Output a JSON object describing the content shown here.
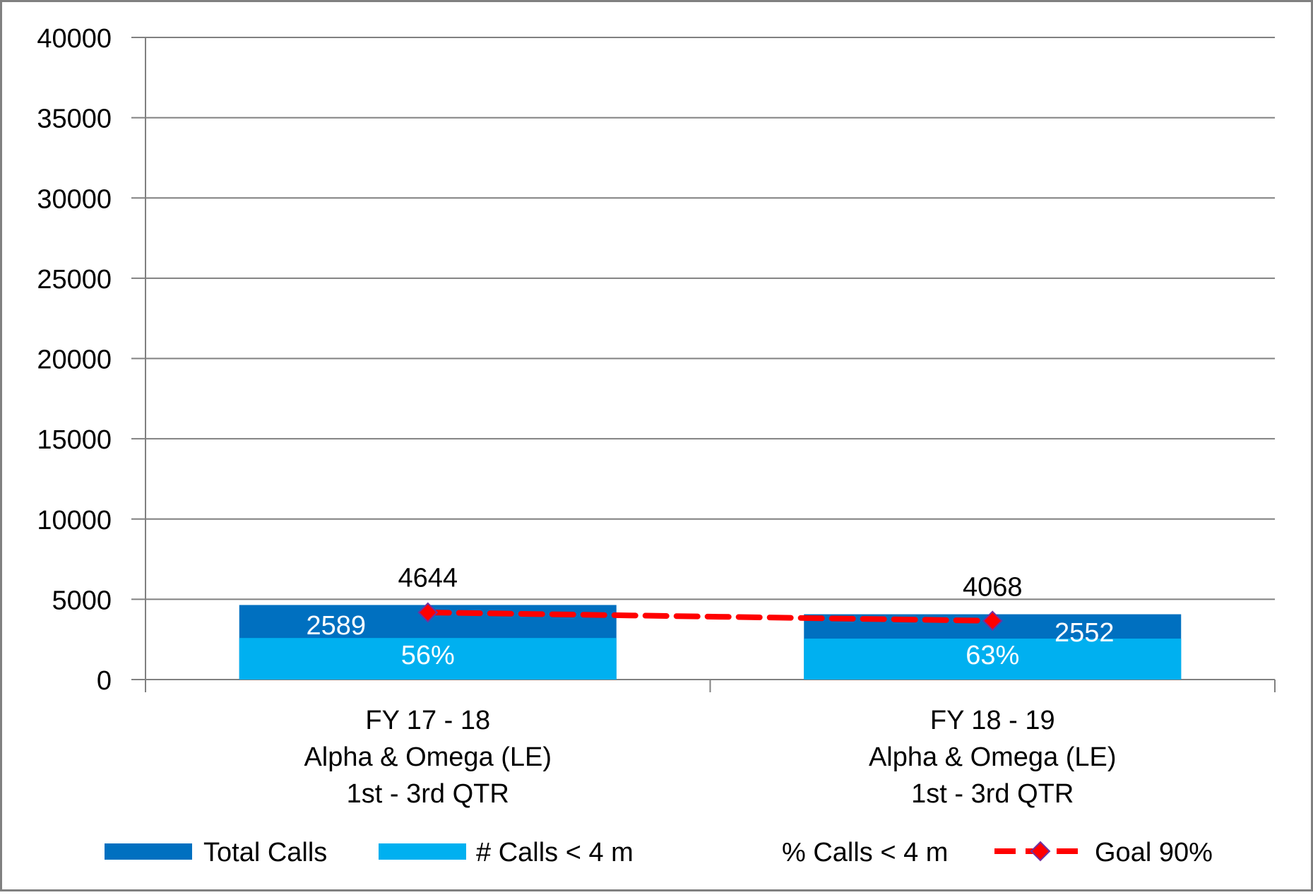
{
  "chart_data": {
    "type": "bar",
    "stacked": false,
    "categories": [
      [
        "FY 17 - 18",
        "Alpha & Omega (LE)",
        "1st - 3rd QTR"
      ],
      [
        "FY 18 - 19",
        "Alpha & Omega (LE)",
        "1st - 3rd QTR"
      ]
    ],
    "series": [
      {
        "name": "Total Calls",
        "kind": "bar",
        "color": "#0070C0",
        "values": [
          4644,
          4068
        ],
        "labels": [
          "4644",
          "4068"
        ]
      },
      {
        "name": "# Calls < 4 m",
        "kind": "bar",
        "color": "#00B0F0",
        "values": [
          2589,
          2552
        ],
        "labels": [
          "2589",
          "2552"
        ]
      },
      {
        "name": "% Calls < 4 m",
        "kind": "label",
        "color": "#FFFFFF",
        "values": [
          56,
          63
        ],
        "labels": [
          "56%",
          "63%"
        ]
      },
      {
        "name": "Goal 90%",
        "kind": "line",
        "color": "#FF0000",
        "marker_color": "#FF0000",
        "marker_edge_color": "#7030A0",
        "values": [
          4180,
          3660
        ]
      }
    ],
    "y_ticks": [
      "0",
      "5000",
      "10000",
      "15000",
      "20000",
      "25000",
      "30000",
      "35000",
      "40000"
    ],
    "ylim": [
      0,
      40000
    ],
    "ytick_step": 5000,
    "grid": true,
    "legend": "bottom",
    "axis_color": "#808080",
    "gridline_color": "#808080",
    "frame_color": "#808080",
    "text_color": "#000000"
  }
}
